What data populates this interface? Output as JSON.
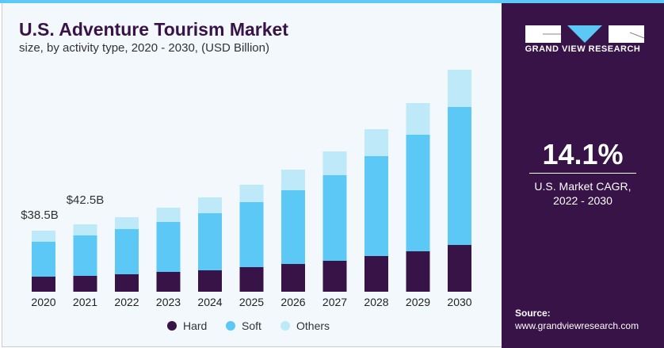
{
  "title": "U.S. Adventure Tourism Market",
  "subtitle": "size, by activity type, 2020 - 2030, (USD Billion)",
  "brand": {
    "name": "GRAND VIEW RESEARCH"
  },
  "cagr": {
    "value": "14.1%",
    "label_line1": "U.S. Market CAGR,",
    "label_line2": "2022 - 2030"
  },
  "source": {
    "label": "Source:",
    "url": "www.grandviewresearch.com"
  },
  "colors": {
    "Hard": "#371347",
    "Soft": "#5bc8f5",
    "Others": "#bde9f9",
    "panel": "#371347"
  },
  "chart_data": {
    "type": "bar",
    "stacked": true,
    "categories": [
      "2020",
      "2021",
      "2022",
      "2023",
      "2024",
      "2025",
      "2026",
      "2027",
      "2028",
      "2029",
      "2030"
    ],
    "series": [
      {
        "name": "Hard",
        "values": [
          9.5,
          10,
          11,
          12.5,
          13.5,
          15.5,
          17.5,
          19.5,
          22.5,
          25.5,
          29.5
        ]
      },
      {
        "name": "Soft",
        "values": [
          22,
          25.5,
          28.5,
          31.5,
          36,
          41,
          46.5,
          54,
          63,
          73.5,
          87
        ]
      },
      {
        "name": "Others",
        "values": [
          7,
          7,
          7.5,
          9,
          10,
          11,
          13,
          15,
          17,
          20,
          23.5
        ]
      }
    ],
    "annotations": [
      {
        "category": "2020",
        "text": "$38.5B"
      },
      {
        "category": "2021",
        "text": "$42.5B"
      }
    ],
    "legend": "bottom",
    "grid": false,
    "ylim": [
      0,
      145
    ]
  }
}
